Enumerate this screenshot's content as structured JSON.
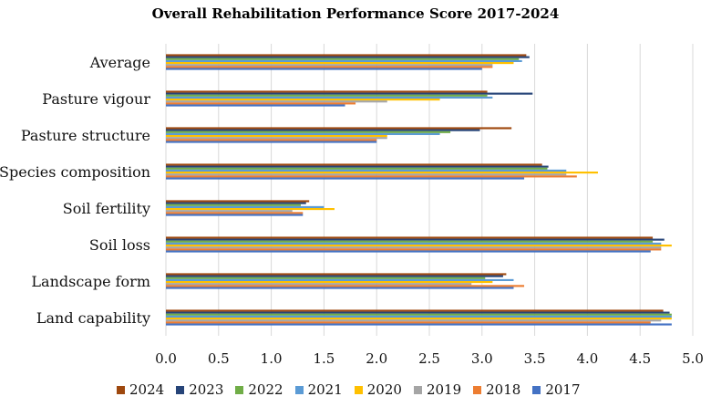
{
  "chart_data": {
    "type": "bar",
    "orientation": "horizontal",
    "title": "Overall Rehabilitation Performance Score 2017-2024",
    "categories": [
      "Average",
      "Pasture vigour",
      "Pasture structure",
      "Species composition",
      "Soil fertility",
      "Soil loss",
      "Landscape form",
      "Land capability"
    ],
    "xlim": [
      0,
      5
    ],
    "xticks": [
      "0.0",
      "0.5",
      "1.0",
      "1.5",
      "2.0",
      "2.5",
      "3.0",
      "3.5",
      "4.0",
      "4.5",
      "5.0"
    ],
    "grid": true,
    "legend_position": "bottom",
    "series": [
      {
        "name": "2024",
        "color": "#9e480e",
        "values": [
          3.42,
          3.05,
          3.28,
          3.57,
          1.36,
          4.62,
          3.23,
          4.72
        ]
      },
      {
        "name": "2023",
        "color": "#264478",
        "values": [
          3.45,
          3.48,
          2.98,
          3.63,
          1.33,
          4.73,
          3.2,
          4.78
        ]
      },
      {
        "name": "2022",
        "color": "#70ad47",
        "values": [
          3.35,
          3.05,
          2.7,
          3.62,
          1.28,
          4.62,
          3.03,
          4.8
        ]
      },
      {
        "name": "2021",
        "color": "#5b9bd5",
        "values": [
          3.38,
          3.1,
          2.6,
          3.8,
          1.5,
          4.7,
          3.3,
          4.8
        ]
      },
      {
        "name": "2020",
        "color": "#ffc000",
        "values": [
          3.3,
          2.6,
          2.1,
          4.1,
          1.6,
          4.8,
          3.1,
          4.8
        ]
      },
      {
        "name": "2019",
        "color": "#a5a5a5",
        "values": [
          3.1,
          2.1,
          2.1,
          3.8,
          1.2,
          4.7,
          2.9,
          4.7
        ]
      },
      {
        "name": "2018",
        "color": "#ed7d31",
        "values": [
          3.1,
          1.8,
          2.0,
          3.9,
          1.3,
          4.7,
          3.4,
          4.6
        ]
      },
      {
        "name": "2017",
        "color": "#4472c4",
        "values": [
          3.0,
          1.7,
          2.0,
          3.4,
          1.3,
          4.6,
          3.3,
          4.8
        ]
      }
    ]
  }
}
